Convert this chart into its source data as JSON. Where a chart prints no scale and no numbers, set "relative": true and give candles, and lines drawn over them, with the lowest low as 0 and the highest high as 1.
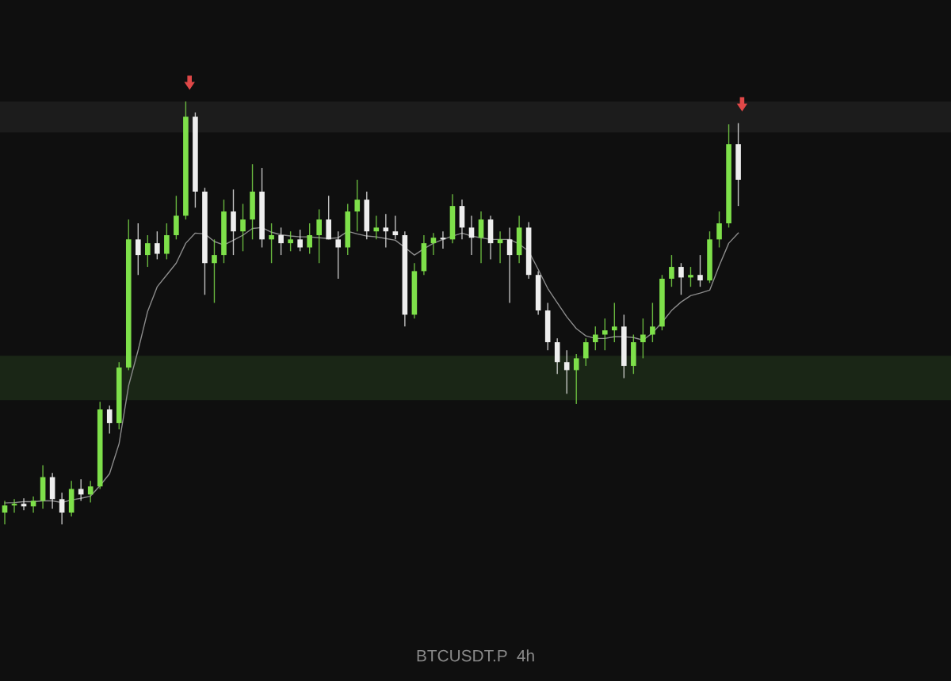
{
  "chart_data": {
    "type": "candlestick",
    "title": "BTCUSDT.P  4h",
    "relative": true,
    "categories": [
      null,
      null,
      null,
      null,
      null,
      null,
      null,
      null,
      null,
      null,
      null,
      null,
      null,
      null,
      null,
      null,
      null,
      null,
      null,
      null,
      null,
      null,
      null,
      null,
      null,
      null,
      null,
      null,
      null,
      null,
      null,
      null,
      null,
      null,
      null,
      null,
      null,
      null,
      null,
      null,
      null,
      null,
      null,
      null,
      null,
      null,
      null,
      null,
      null,
      null,
      null,
      null,
      null,
      null,
      null,
      null,
      null,
      null,
      null,
      null,
      null,
      null,
      null,
      null,
      null,
      null,
      null,
      null,
      null,
      null,
      null,
      null,
      null,
      null,
      null,
      null,
      null,
      null
    ],
    "ohlc": [
      [
        0.028,
        0.056,
        0,
        0.045
      ],
      [
        0.045,
        0.06,
        0.028,
        0.049
      ],
      [
        0.049,
        0.062,
        0.034,
        0.043
      ],
      [
        0.043,
        0.066,
        0.028,
        0.056
      ],
      [
        0.056,
        0.14,
        0.037,
        0.112
      ],
      [
        0.112,
        0.122,
        0.037,
        0.06
      ],
      [
        0.06,
        0.075,
        0,
        0.028
      ],
      [
        0.028,
        0.103,
        0.019,
        0.084
      ],
      [
        0.084,
        0.107,
        0.056,
        0.071
      ],
      [
        0.071,
        0.103,
        0.052,
        0.09
      ],
      [
        0.09,
        0.29,
        0.084,
        0.272
      ],
      [
        0.272,
        0.281,
        0.215,
        0.24
      ],
      [
        0.24,
        0.384,
        0.225,
        0.371
      ],
      [
        0.371,
        0.721,
        0.365,
        0.674
      ],
      [
        0.674,
        0.712,
        0.59,
        0.637
      ],
      [
        0.637,
        0.684,
        0.609,
        0.665
      ],
      [
        0.665,
        0.693,
        0.627,
        0.64
      ],
      [
        0.64,
        0.712,
        0.627,
        0.684
      ],
      [
        0.684,
        0.777,
        0.674,
        0.73
      ],
      [
        0.73,
        1,
        0.721,
        0.964
      ],
      [
        0.964,
        0.974,
        0.749,
        0.787
      ],
      [
        0.787,
        0.796,
        0.543,
        0.618
      ],
      [
        0.618,
        0.674,
        0.524,
        0.637
      ],
      [
        0.637,
        0.768,
        0.618,
        0.74
      ],
      [
        0.74,
        0.792,
        0.637,
        0.693
      ],
      [
        0.693,
        0.758,
        0.646,
        0.721
      ],
      [
        0.721,
        0.852,
        0.674,
        0.787
      ],
      [
        0.787,
        0.843,
        0.655,
        0.674
      ],
      [
        0.674,
        0.712,
        0.618,
        0.684
      ],
      [
        0.684,
        0.702,
        0.637,
        0.665
      ],
      [
        0.665,
        0.693,
        0.646,
        0.674
      ],
      [
        0.674,
        0.697,
        0.646,
        0.655
      ],
      [
        0.655,
        0.712,
        0.64,
        0.684
      ],
      [
        0.684,
        0.745,
        0.618,
        0.721
      ],
      [
        0.721,
        0.777,
        0.674,
        0.674
      ],
      [
        0.674,
        0.693,
        0.581,
        0.655
      ],
      [
        0.655,
        0.758,
        0.637,
        0.74
      ],
      [
        0.74,
        0.815,
        0.693,
        0.768
      ],
      [
        0.768,
        0.787,
        0.674,
        0.693
      ],
      [
        0.693,
        0.73,
        0.674,
        0.702
      ],
      [
        0.702,
        0.734,
        0.655,
        0.693
      ],
      [
        0.693,
        0.73,
        0.674,
        0.684
      ],
      [
        0.684,
        0.693,
        0.468,
        0.496
      ],
      [
        0.496,
        0.618,
        0.487,
        0.599
      ],
      [
        0.599,
        0.684,
        0.59,
        0.665
      ],
      [
        0.665,
        0.689,
        0.637,
        0.678
      ],
      [
        0.678,
        0.693,
        0.652,
        0.674
      ],
      [
        0.674,
        0.781,
        0.665,
        0.753
      ],
      [
        0.753,
        0.768,
        0.674,
        0.702
      ],
      [
        0.702,
        0.73,
        0.637,
        0.678
      ],
      [
        0.678,
        0.74,
        0.618,
        0.721
      ],
      [
        0.721,
        0.73,
        0.627,
        0.665
      ],
      [
        0.665,
        0.693,
        0.618,
        0.674
      ],
      [
        0.674,
        0.702,
        0.524,
        0.637
      ],
      [
        0.637,
        0.73,
        0.618,
        0.702
      ],
      [
        0.702,
        0.715,
        0.581,
        0.59
      ],
      [
        0.59,
        0.599,
        0.496,
        0.506
      ],
      [
        0.506,
        0.524,
        0.412,
        0.431
      ],
      [
        0.431,
        0.44,
        0.356,
        0.384
      ],
      [
        0.384,
        0.412,
        0.309,
        0.365
      ],
      [
        0.365,
        0.403,
        0.285,
        0.393
      ],
      [
        0.393,
        0.44,
        0.375,
        0.431
      ],
      [
        0.431,
        0.468,
        0.412,
        0.449
      ],
      [
        0.449,
        0.487,
        0.412,
        0.459
      ],
      [
        0.459,
        0.524,
        0.431,
        0.468
      ],
      [
        0.468,
        0.496,
        0.346,
        0.375
      ],
      [
        0.375,
        0.449,
        0.356,
        0.431
      ],
      [
        0.431,
        0.487,
        0.393,
        0.449
      ],
      [
        0.449,
        0.524,
        0.431,
        0.468
      ],
      [
        0.468,
        0.59,
        0.459,
        0.581
      ],
      [
        0.581,
        0.637,
        0.562,
        0.609
      ],
      [
        0.609,
        0.618,
        0.543,
        0.584
      ],
      [
        0.584,
        0.609,
        0.562,
        0.59
      ],
      [
        0.59,
        0.637,
        0.562,
        0.577
      ],
      [
        0.577,
        0.693,
        0.571,
        0.674
      ],
      [
        0.674,
        0.74,
        0.655,
        0.712
      ],
      [
        0.712,
        0.946,
        0.702,
        0.899
      ],
      [
        0.899,
        0.949,
        0.753,
        0.815
      ]
    ],
    "colors": [
      "#7ee04a",
      "#7ee04a",
      "#eeeeee",
      "#7ee04a",
      "#7ee04a",
      "#eeeeee",
      "#eeeeee",
      "#7ee04a",
      "#eeeeee",
      "#7ee04a",
      "#7ee04a",
      "#eeeeee",
      "#7ee04a",
      "#7ee04a",
      "#eeeeee",
      "#7ee04a",
      "#eeeeee",
      "#7ee04a",
      "#7ee04a",
      "#7ee04a",
      "#eeeeee",
      "#eeeeee",
      "#7ee04a",
      "#7ee04a",
      "#eeeeee",
      "#7ee04a",
      "#7ee04a",
      "#eeeeee",
      "#7ee04a",
      "#eeeeee",
      "#7ee04a",
      "#eeeeee",
      "#7ee04a",
      "#7ee04a",
      "#eeeeee",
      "#eeeeee",
      "#7ee04a",
      "#7ee04a",
      "#eeeeee",
      "#7ee04a",
      "#eeeeee",
      "#eeeeee",
      "#eeeeee",
      "#7ee04a",
      "#7ee04a",
      "#7ee04a",
      "#eeeeee",
      "#7ee04a",
      "#eeeeee",
      "#eeeeee",
      "#7ee04a",
      "#eeeeee",
      "#7ee04a",
      "#eeeeee",
      "#7ee04a",
      "#eeeeee",
      "#eeeeee",
      "#eeeeee",
      "#eeeeee",
      "#eeeeee",
      "#7ee04a",
      "#7ee04a",
      "#7ee04a",
      "#7ee04a",
      "#7ee04a",
      "#eeeeee",
      "#7ee04a",
      "#7ee04a",
      "#7ee04a",
      "#7ee04a",
      "#7ee04a",
      "#eeeeee",
      "#7ee04a",
      "#eeeeee",
      "#7ee04a",
      "#7ee04a",
      "#7ee04a",
      "#eeeeee"
    ],
    "series": [
      {
        "type": "line",
        "color": "#8c8c8c",
        "values": [
          0.051,
          0.052,
          0.054,
          0.054,
          0.056,
          0.056,
          0.052,
          0.058,
          0.062,
          0.067,
          0.092,
          0.12,
          0.191,
          0.328,
          0.412,
          0.504,
          0.562,
          0.59,
          0.618,
          0.665,
          0.689,
          0.687,
          0.669,
          0.661,
          0.672,
          0.684,
          0.7,
          0.702,
          0.691,
          0.685,
          0.682,
          0.68,
          0.68,
          0.678,
          0.676,
          0.678,
          0.693,
          0.687,
          0.682,
          0.68,
          0.676,
          0.672,
          0.655,
          0.637,
          0.652,
          0.665,
          0.674,
          0.682,
          0.689,
          0.682,
          0.678,
          0.674,
          0.674,
          0.674,
          0.663,
          0.646,
          0.603,
          0.558,
          0.524,
          0.491,
          0.463,
          0.446,
          0.44,
          0.44,
          0.444,
          0.444,
          0.442,
          0.436,
          0.453,
          0.478,
          0.506,
          0.526,
          0.541,
          0.547,
          0.554,
          0.612,
          0.665,
          0.689
        ]
      }
    ],
    "bands": [
      {
        "axis": "y",
        "from": 0.927,
        "to": 1,
        "color": "#1c1c1c"
      },
      {
        "axis": "y",
        "from": 0.294,
        "to": 0.399,
        "color": "#1a2616"
      }
    ]
  }
}
